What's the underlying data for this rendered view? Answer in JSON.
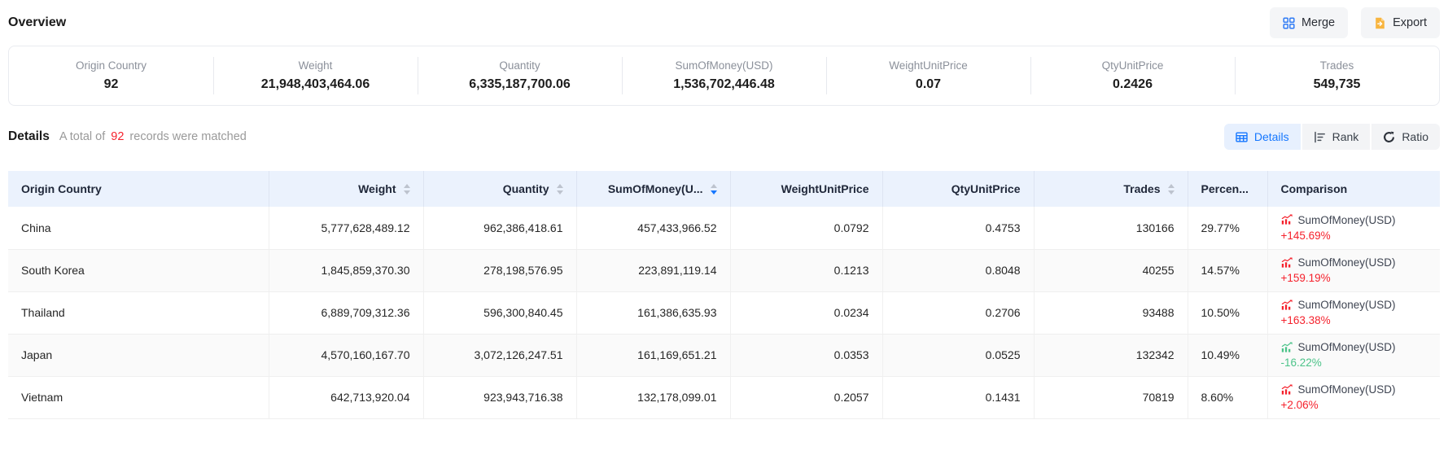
{
  "page": {
    "overview_title": "Overview",
    "details_title": "Details",
    "total_prefix": "A total of",
    "total_count": "92",
    "total_suffix": "records were matched"
  },
  "toolbar": {
    "merge_label": "Merge",
    "merge_icon": "merge-grid-icon",
    "export_label": "Export",
    "export_icon": "export-file-icon"
  },
  "view_switch": [
    {
      "label": "Details",
      "icon": "table-icon",
      "active": true
    },
    {
      "label": "Rank",
      "icon": "rank-icon",
      "active": false
    },
    {
      "label": "Ratio",
      "icon": "ratio-icon",
      "active": false
    }
  ],
  "overview_stats": [
    {
      "label": "Origin Country",
      "value": "92"
    },
    {
      "label": "Weight",
      "value": "21,948,403,464.06"
    },
    {
      "label": "Quantity",
      "value": "6,335,187,700.06"
    },
    {
      "label": "SumOfMoney(USD)",
      "value": "1,536,702,446.48"
    },
    {
      "label": "WeightUnitPrice",
      "value": "0.07"
    },
    {
      "label": "QtyUnitPrice",
      "value": "0.2426"
    },
    {
      "label": "Trades",
      "value": "549,735"
    }
  ],
  "table": {
    "columns": [
      {
        "key": "country",
        "label": "Origin Country",
        "align": "left",
        "sortable": false,
        "sort": null
      },
      {
        "key": "weight",
        "label": "Weight",
        "align": "right",
        "sortable": true,
        "sort": null
      },
      {
        "key": "quantity",
        "label": "Quantity",
        "align": "right",
        "sortable": true,
        "sort": null
      },
      {
        "key": "sum",
        "label": "SumOfMoney(U...",
        "align": "right",
        "sortable": true,
        "sort": "desc"
      },
      {
        "key": "weight_unit_price",
        "label": "WeightUnitPrice",
        "align": "right",
        "sortable": false,
        "sort": null
      },
      {
        "key": "qty_unit_price",
        "label": "QtyUnitPrice",
        "align": "right",
        "sortable": false,
        "sort": null
      },
      {
        "key": "trades",
        "label": "Trades",
        "align": "right",
        "sortable": true,
        "sort": null
      },
      {
        "key": "percent",
        "label": "Percen...",
        "align": "left",
        "sortable": false,
        "sort": null
      },
      {
        "key": "comparison",
        "label": "Comparison",
        "align": "left",
        "sortable": false,
        "sort": null
      }
    ],
    "rows": [
      {
        "country": "China",
        "weight": "5,777,628,489.12",
        "quantity": "962,386,418.61",
        "sum": "457,433,966.52",
        "weight_unit_price": "0.0792",
        "qty_unit_price": "0.4753",
        "trades": "130166",
        "percent": "29.77%",
        "comparison": {
          "metric": "SumOfMoney(USD)",
          "change": "+145.69%",
          "trend": "up"
        }
      },
      {
        "country": "South Korea",
        "weight": "1,845,859,370.30",
        "quantity": "278,198,576.95",
        "sum": "223,891,119.14",
        "weight_unit_price": "0.1213",
        "qty_unit_price": "0.8048",
        "trades": "40255",
        "percent": "14.57%",
        "comparison": {
          "metric": "SumOfMoney(USD)",
          "change": "+159.19%",
          "trend": "up"
        }
      },
      {
        "country": "Thailand",
        "weight": "6,889,709,312.36",
        "quantity": "596,300,840.45",
        "sum": "161,386,635.93",
        "weight_unit_price": "0.0234",
        "qty_unit_price": "0.2706",
        "trades": "93488",
        "percent": "10.50%",
        "comparison": {
          "metric": "SumOfMoney(USD)",
          "change": "+163.38%",
          "trend": "up"
        }
      },
      {
        "country": "Japan",
        "weight": "4,570,160,167.70",
        "quantity": "3,072,126,247.51",
        "sum": "161,169,651.21",
        "weight_unit_price": "0.0353",
        "qty_unit_price": "0.0525",
        "trades": "132342",
        "percent": "10.49%",
        "comparison": {
          "metric": "SumOfMoney(USD)",
          "change": "-16.22%",
          "trend": "down"
        }
      },
      {
        "country": "Vietnam",
        "weight": "642,713,920.04",
        "quantity": "923,943,716.38",
        "sum": "132,178,099.01",
        "weight_unit_price": "0.2057",
        "qty_unit_price": "0.1431",
        "trades": "70819",
        "percent": "8.60%",
        "comparison": {
          "metric": "SumOfMoney(USD)",
          "change": "+2.06%",
          "trend": "up"
        }
      }
    ]
  },
  "colors": {
    "accent_blue": "#1677ff",
    "up_red": "#f5222d",
    "down_green": "#4cc389",
    "table_header_bg": "#ebf2fd"
  }
}
